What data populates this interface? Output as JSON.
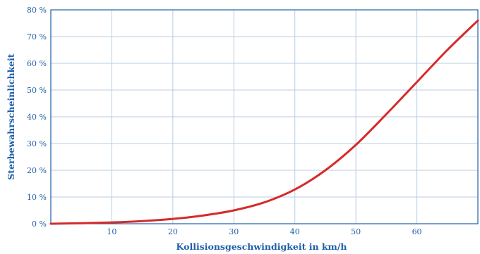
{
  "chart_data": {
    "type": "line",
    "title": "",
    "xlabel": "Kollisionsgeschwindigkeit in km/h",
    "ylabel": "Sterbewahrscheinlichkeit",
    "xlim": [
      0,
      70
    ],
    "ylim": [
      0,
      80
    ],
    "x_ticks": [
      10,
      20,
      30,
      40,
      50,
      60
    ],
    "y_ticks": [
      0,
      10,
      20,
      30,
      40,
      50,
      60,
      70,
      80
    ],
    "y_tick_labels": [
      "0 %",
      "10 %",
      "20 %",
      "30 %",
      "40 %",
      "50 %",
      "60 %",
      "70 %",
      "80 %"
    ],
    "grid": true,
    "series": [
      {
        "color": "#d62a2a",
        "x": [
          0,
          5,
          10,
          15,
          20,
          25,
          30,
          35,
          40,
          45,
          50,
          55,
          60,
          65,
          70
        ],
        "y": [
          0,
          0.2,
          0.5,
          1,
          1.8,
          3.1,
          5,
          8,
          12.8,
          20,
          29.5,
          41,
          53,
          65,
          76
        ]
      }
    ]
  }
}
